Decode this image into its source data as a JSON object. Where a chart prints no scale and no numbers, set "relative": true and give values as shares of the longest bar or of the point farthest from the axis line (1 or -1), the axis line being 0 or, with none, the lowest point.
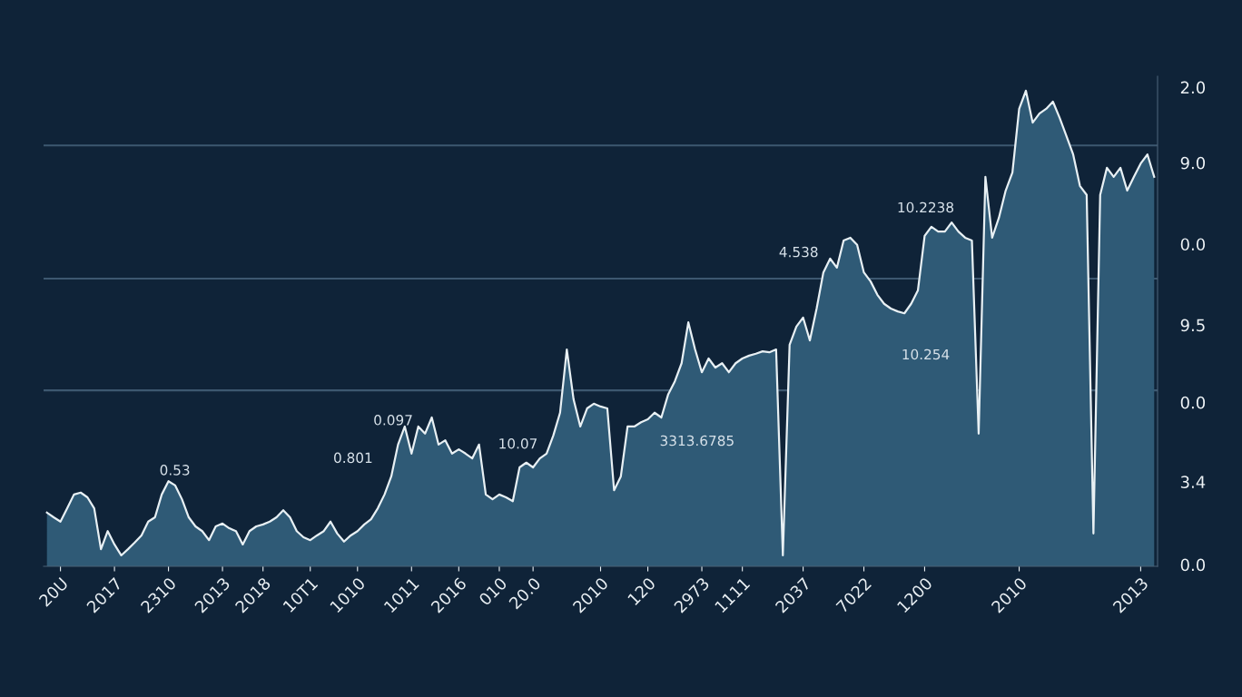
{
  "chart_data": {
    "type": "area",
    "relative": true,
    "categories": [
      null,
      null,
      "20U",
      null,
      null,
      null,
      null,
      null,
      null,
      null,
      "2017",
      null,
      null,
      null,
      null,
      null,
      null,
      null,
      "2310",
      null,
      null,
      null,
      null,
      null,
      null,
      null,
      "2013",
      null,
      null,
      null,
      null,
      null,
      "2018",
      null,
      null,
      null,
      null,
      null,
      null,
      "10T1",
      null,
      null,
      null,
      null,
      null,
      null,
      "1010",
      null,
      null,
      null,
      null,
      null,
      null,
      null,
      "1011",
      null,
      null,
      null,
      null,
      null,
      null,
      "2016",
      null,
      null,
      null,
      null,
      null,
      "010",
      null,
      null,
      null,
      null,
      "20.0",
      null,
      null,
      null,
      null,
      null,
      null,
      null,
      null,
      null,
      "2010",
      null,
      null,
      null,
      null,
      null,
      null,
      "120",
      null,
      null,
      null,
      null,
      null,
      null,
      null,
      "2973",
      null,
      null,
      null,
      null,
      null,
      "1111",
      null,
      null,
      null,
      null,
      null,
      null,
      null,
      null,
      "2037",
      null,
      null,
      null,
      null,
      null,
      null,
      null,
      null,
      "7022",
      null,
      null,
      null,
      null,
      null,
      null,
      null,
      null,
      "1200",
      null,
      null,
      null,
      null,
      null,
      null,
      null,
      null,
      null,
      null,
      null,
      null,
      null,
      "2010",
      null,
      null,
      null,
      null,
      null,
      null,
      null,
      null,
      null,
      null,
      null,
      null,
      null,
      null,
      null,
      null,
      null,
      "2013",
      null,
      null
    ],
    "series": [
      {
        "color": "#2f5a76",
        "values": [
          0.113,
          0.103,
          0.094,
          0.122,
          0.151,
          0.155,
          0.145,
          0.122,
          0.036,
          0.074,
          0.046,
          0.023,
          0.036,
          0.05,
          0.065,
          0.094,
          0.103,
          0.151,
          0.179,
          0.17,
          0.141,
          0.103,
          0.084,
          0.074,
          0.055,
          0.084,
          0.09,
          0.08,
          0.074,
          0.046,
          0.074,
          0.084,
          0.088,
          0.094,
          0.103,
          0.118,
          0.103,
          0.074,
          0.061,
          0.055,
          0.065,
          0.074,
          0.094,
          0.069,
          0.052,
          0.065,
          0.074,
          0.088,
          0.099,
          0.122,
          0.151,
          0.189,
          0.256,
          0.294,
          0.237,
          0.294,
          0.279,
          0.313,
          0.256,
          0.265,
          0.237,
          0.246,
          0.237,
          0.227,
          0.256,
          0.151,
          0.141,
          0.151,
          0.145,
          0.137,
          0.208,
          0.218,
          0.208,
          0.227,
          0.237,
          0.275,
          0.323,
          0.456,
          0.351,
          0.294,
          0.332,
          0.342,
          0.336,
          0.332,
          0.16,
          0.189,
          0.294,
          0.294,
          0.303,
          0.309,
          0.323,
          0.313,
          0.361,
          0.389,
          0.427,
          0.513,
          0.456,
          0.408,
          0.437,
          0.418,
          0.427,
          0.408,
          0.427,
          0.437,
          0.443,
          0.447,
          0.452,
          0.45,
          0.456,
          0.023,
          0.466,
          0.504,
          0.523,
          0.475,
          0.542,
          0.618,
          0.647,
          0.628,
          0.685,
          0.691,
          0.676,
          0.618,
          0.599,
          0.571,
          0.552,
          0.542,
          0.536,
          0.532,
          0.552,
          0.58,
          0.695,
          0.714,
          0.704,
          0.704,
          0.723,
          0.704,
          0.691,
          0.685,
          0.279,
          0.819,
          0.691,
          0.733,
          0.79,
          0.828,
          0.962,
          1,
          0.933,
          0.952,
          0.962,
          0.977,
          0.943,
          0.905,
          0.866,
          0.8,
          0.781,
          0.069,
          0.781,
          0.838,
          0.819,
          0.838,
          0.79,
          0.819,
          0.847,
          0.866,
          0.819
        ]
      }
    ],
    "ref_lines": [
      {
        "axis": "y",
        "value": 0.885,
        "color": "#3d5870"
      },
      {
        "axis": "y",
        "value": 0.605,
        "color": "#3d5870"
      },
      {
        "axis": "y",
        "value": 0.37,
        "color": "#3d5870"
      }
    ],
    "annotations": [
      "0.53",
      "0.801",
      "0.097",
      "10.07",
      "3313.6785",
      "4.538",
      "10.2238",
      "10.254",
      "2.0",
      "9.0",
      "0.0",
      "9.5",
      "0.0",
      "3.4",
      "0.0"
    ],
    "grid": false,
    "legend": false
  }
}
